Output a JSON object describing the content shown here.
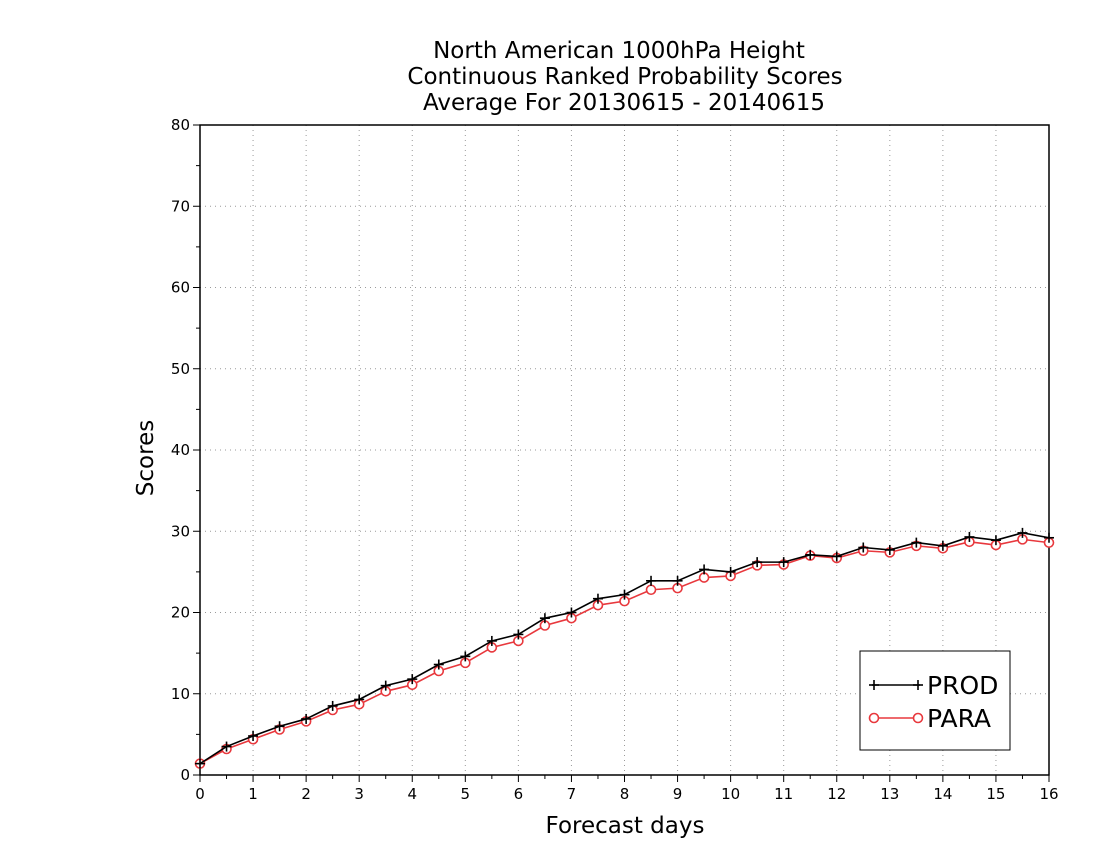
{
  "chart_data": {
    "type": "line",
    "title": [
      "North American 1000hPa Height",
      "Continuous Ranked Probability Scores",
      "Average For 20130615 - 20140615"
    ],
    "xlabel": "Forecast days",
    "ylabel": "Scores",
    "xlim": [
      0,
      16
    ],
    "ylim": [
      0,
      80
    ],
    "xticks": [
      "0",
      "1",
      "2",
      "3",
      "4",
      "5",
      "6",
      "7",
      "8",
      "9",
      "10",
      "11",
      "12",
      "13",
      "14",
      "15",
      "16"
    ],
    "yticks": [
      "0",
      "10",
      "20",
      "30",
      "40",
      "50",
      "60",
      "70",
      "80"
    ],
    "grid": true,
    "legend_position": "bottom-right",
    "x": [
      0,
      0.5,
      1,
      1.5,
      2,
      2.5,
      3,
      3.5,
      4,
      4.5,
      5,
      5.5,
      6,
      6.5,
      7,
      7.5,
      8,
      8.5,
      9,
      9.5,
      10,
      10.5,
      11,
      11.5,
      12,
      12.5,
      13,
      13.5,
      14,
      14.5,
      15,
      15.5,
      16
    ],
    "series": [
      {
        "name": "PROD",
        "color": "#000000",
        "marker": "plus",
        "values": [
          1.4,
          3.5,
          4.8,
          6.0,
          6.9,
          8.5,
          9.3,
          11.0,
          11.8,
          13.6,
          14.6,
          16.5,
          17.3,
          19.3,
          20.0,
          21.7,
          22.2,
          23.9,
          23.9,
          25.3,
          25.0,
          26.2,
          26.2,
          27.1,
          26.9,
          28.0,
          27.7,
          28.6,
          28.2,
          29.3,
          28.9,
          29.8,
          29.2
        ]
      },
      {
        "name": "PARA",
        "color": "#e8383d",
        "marker": "circle",
        "values": [
          1.4,
          3.2,
          4.4,
          5.6,
          6.6,
          8.0,
          8.7,
          10.3,
          11.1,
          12.8,
          13.8,
          15.7,
          16.5,
          18.4,
          19.3,
          20.9,
          21.4,
          22.8,
          23.0,
          24.3,
          24.5,
          25.8,
          25.9,
          27.0,
          26.7,
          27.6,
          27.4,
          28.2,
          27.9,
          28.7,
          28.3,
          29.0,
          28.6
        ]
      }
    ]
  }
}
